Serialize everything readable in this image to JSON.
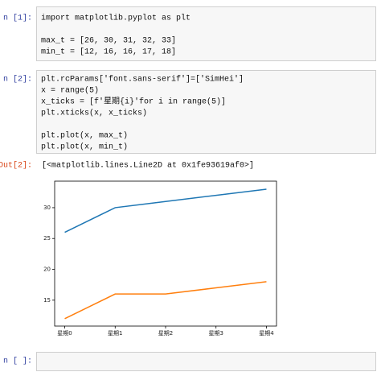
{
  "cells": [
    {
      "prompt": "n [1]:",
      "blocks": [
        [
          "import matplotlib.pyplot as plt"
        ],
        [
          "max_t = [26, 30, 31, 32, 33]",
          "min_t = [12, 16, 16, 17, 18]"
        ]
      ]
    },
    {
      "prompt": "n [2]:",
      "blocks": [
        [
          "plt.rcParams['font.sans-serif']=['SimHei']",
          "x = range(5)",
          "x_ticks = [f'星期{i}'for i in range(5)]",
          "plt.xticks(x, x_ticks)"
        ],
        [
          "plt.plot(x, max_t)",
          "plt.plot(x, min_t)"
        ]
      ]
    },
    {
      "prompt": "n [ ]:",
      "blocks": []
    }
  ],
  "output": {
    "prompt": "Out[2]:",
    "text": "[<matplotlib.lines.Line2D at 0x1fe93619af0>]"
  },
  "chart_data": {
    "type": "line",
    "x": [
      0,
      1,
      2,
      3,
      4
    ],
    "series": [
      {
        "color": "#1f77b4",
        "values": [
          26,
          30,
          31,
          32,
          33
        ]
      },
      {
        "color": "#ff7f0e",
        "values": [
          12,
          16,
          16,
          17,
          18
        ]
      }
    ],
    "xlim": [
      -0.2,
      4.2
    ],
    "xticks": [
      {
        "value": 0,
        "label": "星期0"
      },
      {
        "value": 1,
        "label": "星期1"
      },
      {
        "value": 2,
        "label": "星期2"
      },
      {
        "value": 3,
        "label": "星期3"
      },
      {
        "value": 4,
        "label": "星期4"
      }
    ],
    "ylim": [
      10.8,
      34.3
    ],
    "yticks": [
      15,
      20,
      25,
      30
    ]
  }
}
